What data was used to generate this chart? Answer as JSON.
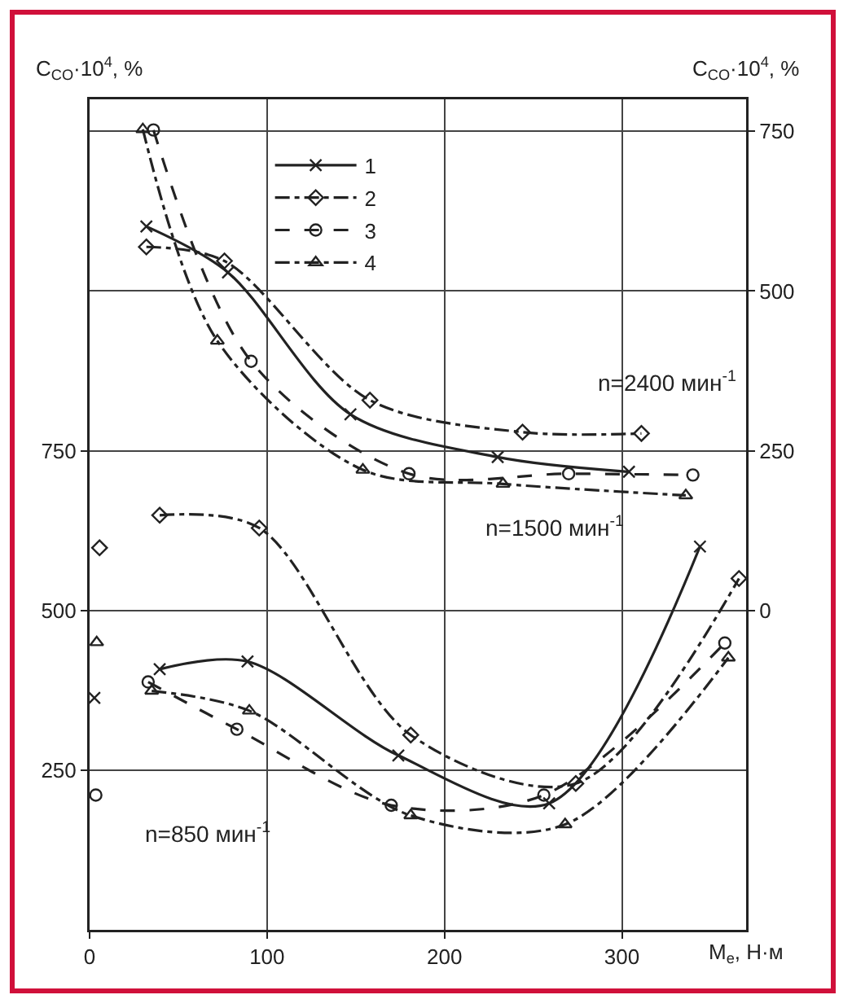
{
  "chart_data": {
    "type": "line",
    "xlabel": "M$_{e}$, Н·м",
    "ylabel": "C$_{CO}$·10$^{4}$, %",
    "y2label": "C$_{CO}$·10$^{4}$, %",
    "xlim": [
      0,
      370
    ],
    "xticks": [
      0,
      100,
      200,
      300
    ],
    "ylim": [
      0,
      1300
    ],
    "yticks": [
      250,
      500,
      750
    ],
    "y2lim": [
      -500,
      800
    ],
    "y2ticks": [
      0,
      250,
      500,
      750
    ],
    "grid": true,
    "legend": "top left",
    "series": [
      {
        "name": "1",
        "color": "#222222",
        "marker": "cross",
        "line_style": "solid",
        "axis": "y2",
        "x": [
          32,
          78,
          147,
          230,
          304
        ],
        "values": [
          601,
          529,
          307,
          240,
          217
        ]
      },
      {
        "name": "2",
        "color": "#222222",
        "marker": "diamond",
        "line_style": "dashdot",
        "axis": "y2",
        "x": [
          32,
          76,
          158,
          244,
          311
        ],
        "values": [
          569,
          547,
          329,
          279,
          277
        ]
      },
      {
        "name": "3",
        "color": "#222222",
        "marker": "circle",
        "line_style": "dashed",
        "axis": "y2",
        "x": [
          36,
          91,
          180,
          270,
          340
        ],
        "values": [
          752,
          390,
          214,
          214,
          212
        ]
      },
      {
        "name": "4",
        "color": "#222222",
        "marker": "triangle",
        "line_style": "dashdot",
        "axis": "y2",
        "x": [
          30,
          72,
          154,
          233,
          336
        ],
        "values": [
          753,
          422,
          220,
          198,
          180
        ]
      },
      {
        "color": "#222222",
        "marker": "cross",
        "line_style": "solid",
        "x": [
          39.5,
          89,
          174,
          259,
          344
        ],
        "values": [
          408,
          420,
          273,
          198,
          600
        ]
      },
      {
        "color": "#222222",
        "marker": "diamond",
        "line_style": "dashdot",
        "x": [
          39.5,
          95.6,
          181,
          274,
          366
        ],
        "values": [
          649,
          629,
          305,
          229,
          550
        ]
      },
      {
        "color": "#222222",
        "marker": "circle",
        "line_style": "dashed",
        "x": [
          33,
          83,
          170,
          256,
          358
        ],
        "values": [
          388,
          314,
          195,
          211,
          449
        ]
      },
      {
        "color": "#222222",
        "marker": "triangle",
        "line_style": "dashdot",
        "x": [
          35,
          90,
          181,
          268,
          360
        ],
        "values": [
          374,
          343,
          179,
          165,
          426
        ]
      },
      {
        "type": "scatter",
        "color": "#222222",
        "marker": "cross",
        "x": [
          2.7
        ],
        "values": [
          363
        ]
      },
      {
        "type": "scatter",
        "color": "#222222",
        "marker": "diamond",
        "x": [
          5.6
        ],
        "values": [
          598
        ]
      },
      {
        "type": "scatter",
        "color": "#222222",
        "marker": "circle",
        "x": [
          3.5
        ],
        "values": [
          211
        ]
      },
      {
        "type": "scatter",
        "color": "#222222",
        "marker": "triangle",
        "x": [
          4
        ],
        "values": [
          450
        ]
      }
    ],
    "annotations": [
      "n=2400 мин$^{-1}$",
      "n=1500 мин$^{-1}$",
      "n=850 мин$^{-1}$"
    ]
  }
}
